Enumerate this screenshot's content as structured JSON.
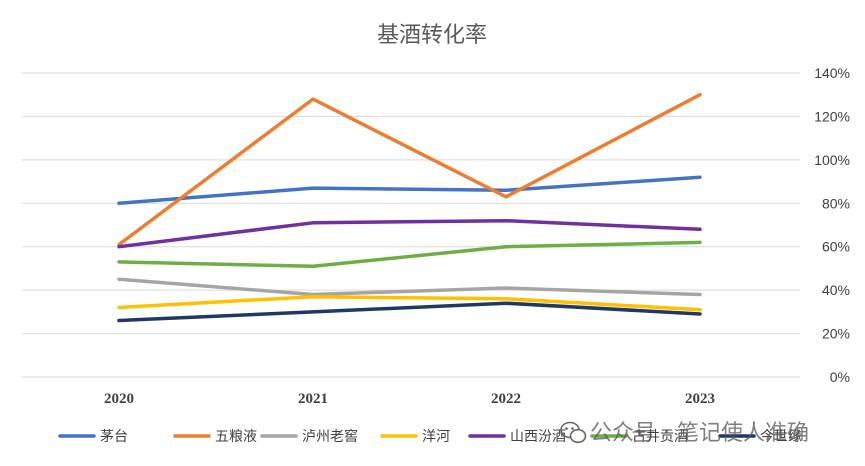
{
  "chart_data": {
    "type": "line",
    "title": "基酒转化率",
    "xlabel": "",
    "ylabel": "",
    "categories": [
      "2020",
      "2021",
      "2022",
      "2023"
    ],
    "ylim": [
      0,
      140
    ],
    "yticks": [
      0,
      20,
      40,
      60,
      80,
      100,
      120,
      140
    ],
    "ytick_labels": [
      "0%",
      "20%",
      "40%",
      "60%",
      "80%",
      "100%",
      "120%",
      "140%"
    ],
    "y_axis_side": "right",
    "grid": true,
    "legend_position": "bottom",
    "series": [
      {
        "name": "茅台",
        "color": "#4472C4",
        "values": [
          80,
          87,
          86,
          92
        ]
      },
      {
        "name": "五粮液",
        "color": "#ED7D31",
        "values": [
          61,
          128,
          83,
          130
        ]
      },
      {
        "name": "泸州老窖",
        "color": "#A5A5A5",
        "values": [
          45,
          38,
          41,
          38
        ]
      },
      {
        "name": "洋河",
        "color": "#FFC000",
        "values": [
          32,
          37,
          36,
          31
        ]
      },
      {
        "name": "山西汾酒",
        "color": "#7030A0",
        "values": [
          60,
          71,
          72,
          68
        ]
      },
      {
        "name": "古井贡酒",
        "color": "#70AD47",
        "values": [
          53,
          51,
          60,
          62
        ]
      },
      {
        "name": "今世缘",
        "color": "#203864",
        "values": [
          26,
          30,
          34,
          29
        ]
      }
    ]
  },
  "watermark": {
    "text": "公众号 · 笔记使人准确",
    "icon": "wechat-icon"
  }
}
